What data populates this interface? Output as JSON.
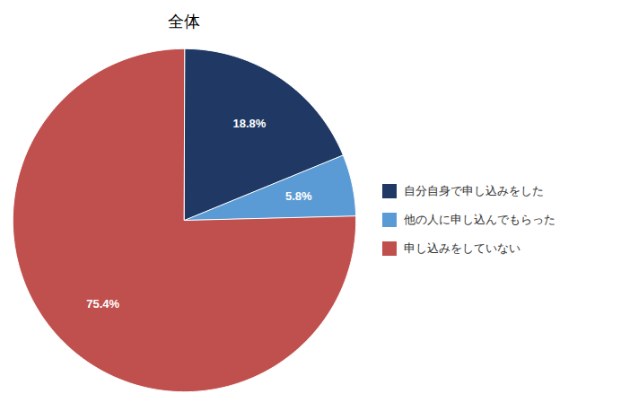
{
  "chart_data": {
    "type": "pie",
    "title": "全体",
    "categories": [
      "自分自身で申し込みをした",
      "他の人に申し込んでもらった",
      "申し込みをしていない"
    ],
    "values": [
      18.8,
      5.8,
      75.4
    ],
    "value_labels": [
      "18.8%",
      "5.8%",
      "75.4%"
    ],
    "colors": [
      "#1f3864",
      "#5b9bd5",
      "#c0504d"
    ],
    "data_labels": true,
    "legend": "right"
  }
}
